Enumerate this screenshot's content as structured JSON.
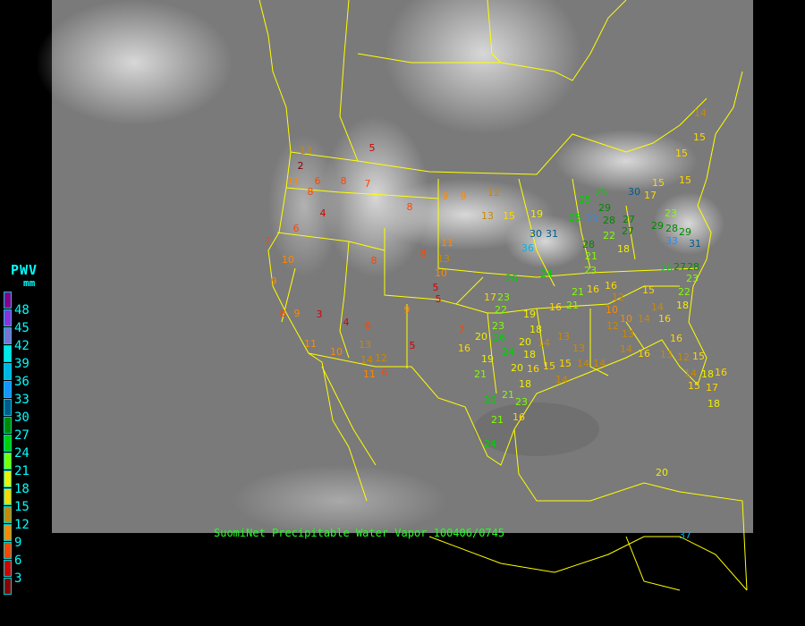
{
  "caption": "SuomiNet Precipitable Water Vapor 100406/0745",
  "legend": {
    "title": "PWV",
    "unit": "mm",
    "labels": [
      "48",
      "45",
      "42",
      "39",
      "36",
      "33",
      "30",
      "27",
      "24",
      "21",
      "18",
      "15",
      "12",
      "9",
      "6",
      "3"
    ],
    "colors": [
      "#8b008b",
      "#9030e0",
      "#8070d0",
      "#00e8e8",
      "#00b4e6",
      "#1e90ff",
      "#005a8c",
      "#008800",
      "#00d000",
      "#80ff00",
      "#f0f000",
      "#ffd700",
      "#cc8800",
      "#ff8800",
      "#ff4500",
      "#d40000",
      "#8b0000"
    ]
  },
  "colors": {
    "background": "#000000",
    "boundaries": "#ffff00",
    "caption": "#22ff22",
    "legend_text": "#00ffff"
  },
  "stations": [
    5,
    2,
    13,
    11,
    6,
    8,
    8,
    7,
    4,
    6,
    7,
    10,
    9,
    8,
    9,
    3,
    4,
    6,
    8,
    9,
    9,
    12,
    13,
    15,
    19,
    11,
    8,
    13,
    10,
    5,
    5,
    8,
    5,
    11,
    10,
    13,
    14,
    11,
    12,
    6,
    9,
    7,
    16,
    19,
    21,
    20,
    18,
    26,
    21,
    23,
    21,
    16,
    24,
    17,
    23,
    22,
    23,
    20,
    26,
    24,
    19,
    18,
    20,
    14,
    18,
    16,
    15,
    15,
    13,
    13,
    14,
    14,
    14,
    21,
    16,
    21,
    16,
    16,
    24,
    30,
    31,
    36,
    26,
    33,
    25,
    25,
    25,
    29,
    30,
    28,
    27,
    22,
    27,
    18,
    28,
    21,
    23,
    15,
    17,
    23,
    28,
    29,
    33,
    31,
    29,
    26,
    27,
    28,
    23,
    22,
    18,
    15,
    14,
    16,
    14,
    10,
    10,
    12,
    12,
    13,
    14,
    16,
    16,
    13,
    12,
    15,
    14,
    18,
    16,
    15,
    17,
    18,
    14,
    15,
    15,
    15,
    20,
    37
  ]
}
